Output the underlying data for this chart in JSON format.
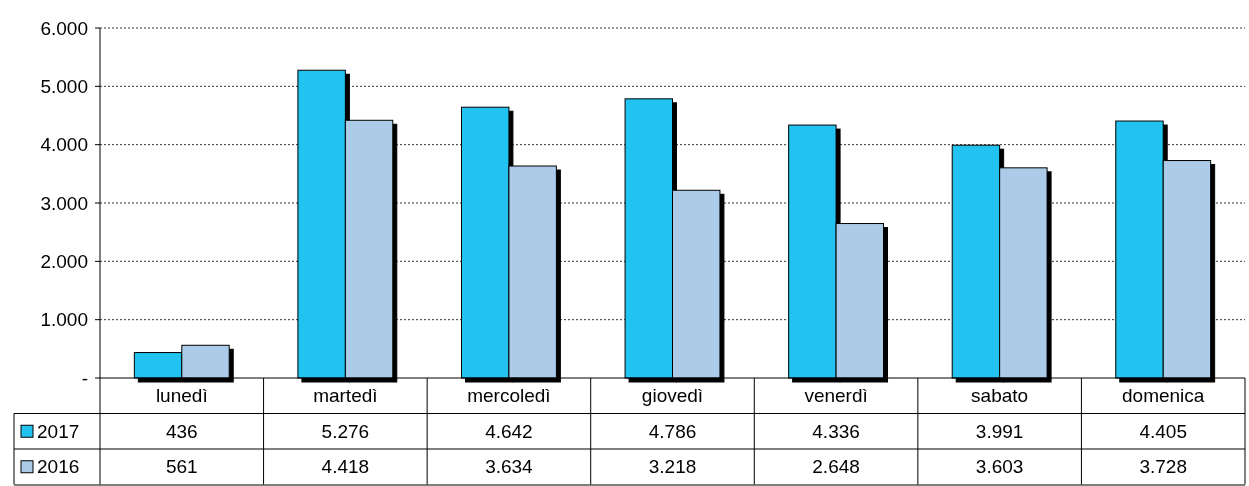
{
  "chart_data": {
    "type": "bar",
    "categories": [
      "lunedì",
      "martedì",
      "mercoledì",
      "giovedì",
      "venerdì",
      "sabato",
      "domenica"
    ],
    "series": [
      {
        "name": "2017",
        "color": "#22c3f0",
        "values": [
          436,
          5276,
          4642,
          4786,
          4336,
          3991,
          4405
        ],
        "value_labels": [
          "436",
          "5.276",
          "4.642",
          "4.786",
          "4.336",
          "3.991",
          "4.405"
        ]
      },
      {
        "name": "2016",
        "color": "#abcbe8",
        "values": [
          561,
          4418,
          3634,
          3218,
          2648,
          3603,
          3728
        ],
        "value_labels": [
          "561",
          "4.418",
          "3.634",
          "3.218",
          "2.648",
          "3.603",
          "3.728"
        ]
      }
    ],
    "ylim": [
      0,
      6000
    ],
    "yticks": [
      {
        "value": 0,
        "label": "-"
      },
      {
        "value": 1000,
        "label": "1.000"
      },
      {
        "value": 2000,
        "label": "2.000"
      },
      {
        "value": 3000,
        "label": "3.000"
      },
      {
        "value": 4000,
        "label": "4.000"
      },
      {
        "value": 5000,
        "label": "5.000"
      },
      {
        "value": 6000,
        "label": "6.000"
      }
    ],
    "grid": "y",
    "legend": "bottom"
  }
}
